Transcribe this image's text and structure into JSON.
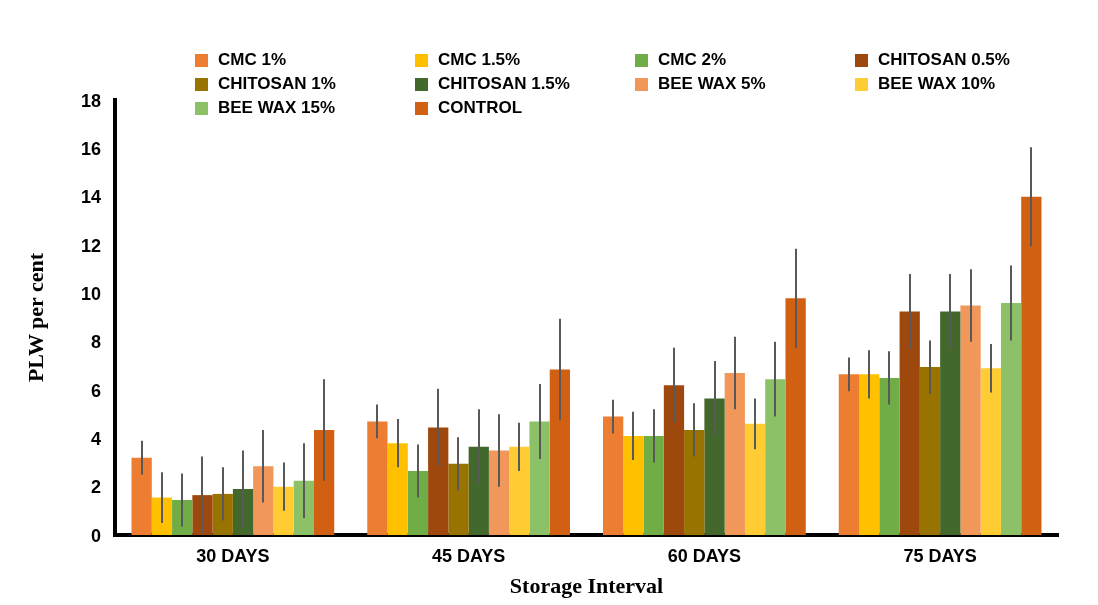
{
  "chart_data": {
    "type": "bar",
    "xlabel": "Storage Interval",
    "ylabel": "PLW per cent",
    "categories": [
      "30 DAYS",
      "45 DAYS",
      "60 DAYS",
      "75 DAYS"
    ],
    "series": [
      {
        "name": "CMC 1%",
        "color": "#ed7d31",
        "values": [
          3.2,
          4.7,
          4.9,
          6.65
        ],
        "errors": [
          0.7,
          0.7,
          0.7,
          0.7
        ]
      },
      {
        "name": "CMC 1.5%",
        "color": "#ffc000",
        "values": [
          1.55,
          3.8,
          4.1,
          6.65
        ],
        "errors": [
          1.05,
          1.0,
          1.0,
          1.0
        ]
      },
      {
        "name": "CMC 2%",
        "color": "#70ad47",
        "values": [
          1.45,
          2.65,
          4.1,
          6.5
        ],
        "errors": [
          1.1,
          1.1,
          1.1,
          1.1
        ]
      },
      {
        "name": "CHITOSAN 0.5%",
        "color": "#9e480e",
        "values": [
          1.65,
          4.45,
          6.2,
          9.25
        ],
        "errors": [
          1.6,
          1.6,
          1.55,
          1.55
        ]
      },
      {
        "name": "CHITOSAN 1%",
        "color": "#997300",
        "values": [
          1.7,
          2.95,
          4.35,
          6.95
        ],
        "errors": [
          1.1,
          1.1,
          1.1,
          1.1
        ]
      },
      {
        "name": "CHITOSAN 1.5%",
        "color": "#43682b",
        "values": [
          1.9,
          3.65,
          5.65,
          9.25
        ],
        "errors": [
          1.6,
          1.55,
          1.55,
          1.55
        ]
      },
      {
        "name": "BEE WAX 5%",
        "color": "#f1975a",
        "values": [
          2.85,
          3.5,
          6.7,
          9.5
        ],
        "errors": [
          1.5,
          1.5,
          1.5,
          1.5
        ]
      },
      {
        "name": "BEE WAX 10%",
        "color": "#ffcd33",
        "values": [
          2.0,
          3.65,
          4.6,
          6.9
        ],
        "errors": [
          1.0,
          1.0,
          1.05,
          1.0
        ]
      },
      {
        "name": "BEE WAX 15%",
        "color": "#8cc168",
        "values": [
          2.25,
          4.7,
          6.45,
          9.6
        ],
        "errors": [
          1.55,
          1.55,
          1.55,
          1.55
        ]
      },
      {
        "name": "CONTROL",
        "color": "#d26012",
        "values": [
          4.35,
          6.85,
          9.8,
          14.0
        ],
        "errors": [
          2.1,
          2.1,
          2.05,
          2.05
        ]
      }
    ],
    "ylim": [
      0,
      18
    ],
    "yticks": [
      0,
      2,
      4,
      6,
      8,
      10,
      12,
      14,
      16,
      18
    ],
    "grid": false,
    "legend": "top"
  }
}
